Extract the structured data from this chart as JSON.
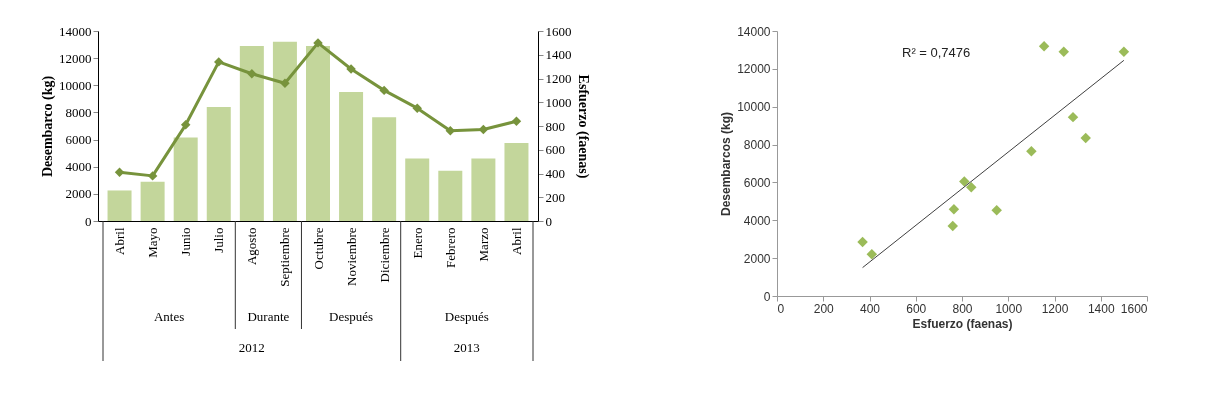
{
  "chart_data": [
    {
      "type": "bar",
      "categories": [
        "Abril",
        "Mayo",
        "Junio",
        "Julio",
        "Agosto",
        "Septiembre",
        "Octubre",
        "Noviembre",
        "Diciembre",
        "Enero",
        "Febrero",
        "Marzo",
        "Abril"
      ],
      "series": [
        {
          "type": "bar",
          "color": "#c3d69b",
          "values": [
            2250,
            2900,
            6150,
            8400,
            12900,
            13200,
            12900,
            9500,
            7650,
            4600,
            3700,
            4600,
            5750
          ]
        },
        {
          "type": "line",
          "axis": "y2",
          "color": "#77933c",
          "marker": "diamond",
          "values": [
            410,
            380,
            810,
            1340,
            1240,
            1160,
            1500,
            1280,
            1100,
            950,
            760,
            770,
            840
          ]
        }
      ],
      "ylabel": "Desembarco (kg)",
      "y2label": "Esfuerzo (faenas)",
      "ylim": [
        0,
        14000
      ],
      "yticks": [
        0,
        2000,
        4000,
        6000,
        8000,
        10000,
        12000,
        14000
      ],
      "y2lim": [
        0,
        1600
      ],
      "y2ticks": [
        0,
        200,
        400,
        600,
        800,
        1000,
        1200,
        1400,
        1600
      ],
      "annotations": [
        "Antes",
        "Durante",
        "Después",
        "Después",
        "2012",
        "2013"
      ]
    },
    {
      "type": "scatter",
      "x": [
        370,
        410,
        760,
        765,
        810,
        840,
        950,
        1100,
        1155,
        1240,
        1280,
        1335,
        1500
      ],
      "series": [
        {
          "type": "scatter",
          "color": "#9bbb59",
          "marker": "diamond",
          "values": [
            2850,
            2200,
            3700,
            4580,
            6050,
            5750,
            4530,
            7650,
            13200,
            12900,
            9450,
            8350,
            12900
          ]
        },
        {
          "type": "line",
          "x": [
            370,
            1500
          ],
          "color": "#404040",
          "values": [
            1500,
            12450
          ]
        }
      ],
      "xlabel": "Esfuerzo (faenas)",
      "ylabel": "Desembarcos (kg)",
      "xlim": [
        0,
        1600
      ],
      "xticks": [
        0,
        200,
        400,
        600,
        800,
        1000,
        1200,
        1400,
        1600
      ],
      "ylim": [
        0,
        14000
      ],
      "yticks": [
        0,
        2000,
        4000,
        6000,
        8000,
        10000,
        12000,
        14000
      ],
      "annotations": [
        "R² = 0,7476"
      ]
    }
  ]
}
